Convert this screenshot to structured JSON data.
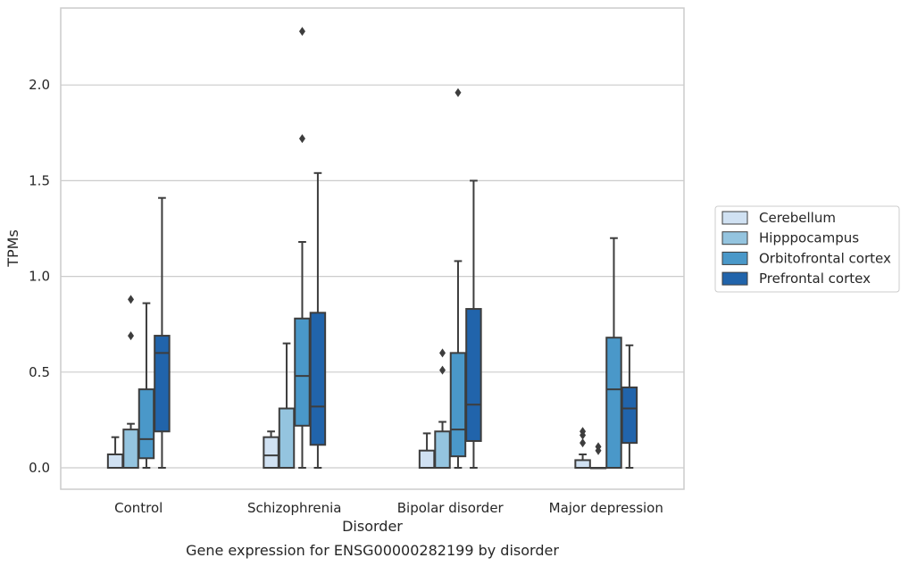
{
  "chart_data": {
    "type": "boxplot",
    "caption": "Gene expression for ENSG00000282199 by disorder",
    "xlabel": "Disorder",
    "ylabel": "TPMs",
    "ylim": [
      -0.11,
      2.4
    ],
    "yticks": [
      0.0,
      0.5,
      1.0,
      1.5,
      2.0
    ],
    "ytick_labels": [
      "0.0",
      "0.5",
      "1.0",
      "1.5",
      "2.0"
    ],
    "grid": true,
    "legend_position": "right",
    "categories": [
      "Control",
      "Schizophrenia",
      "Bipolar disorder",
      "Major depression"
    ],
    "series": [
      {
        "name": "Cerebellum",
        "color": "#d0e1f2",
        "boxes": [
          {
            "whisker_low": 0.0,
            "q1": 0.0,
            "median": 0.0,
            "q3": 0.07,
            "whisker_high": 0.16,
            "outliers": []
          },
          {
            "whisker_low": 0.0,
            "q1": 0.0,
            "median": 0.065,
            "q3": 0.16,
            "whisker_high": 0.19,
            "outliers": []
          },
          {
            "whisker_low": 0.0,
            "q1": 0.0,
            "median": 0.0,
            "q3": 0.09,
            "whisker_high": 0.18,
            "outliers": []
          },
          {
            "whisker_low": 0.0,
            "q1": 0.0,
            "median": 0.0,
            "q3": 0.04,
            "whisker_high": 0.07,
            "outliers": [
              0.13,
              0.17,
              0.19
            ]
          }
        ]
      },
      {
        "name": "Hipppocampus",
        "color": "#94c4df",
        "boxes": [
          {
            "whisker_low": 0.0,
            "q1": 0.0,
            "median": 0.0,
            "q3": 0.2,
            "whisker_high": 0.23,
            "outliers": [
              0.69,
              0.88
            ]
          },
          {
            "whisker_low": 0.0,
            "q1": 0.0,
            "median": 0.0,
            "q3": 0.31,
            "whisker_high": 0.65,
            "outliers": []
          },
          {
            "whisker_low": 0.0,
            "q1": 0.0,
            "median": 0.0,
            "q3": 0.19,
            "whisker_high": 0.24,
            "outliers": [
              0.51,
              0.6
            ]
          },
          {
            "whisker_low": 0.0,
            "q1": 0.0,
            "median": 0.0,
            "q3": 0.0,
            "whisker_high": 0.0,
            "outliers": [
              0.09,
              0.11
            ]
          }
        ]
      },
      {
        "name": "Orbitofrontal cortex",
        "color": "#4a98c9",
        "boxes": [
          {
            "whisker_low": 0.0,
            "q1": 0.05,
            "median": 0.15,
            "q3": 0.41,
            "whisker_high": 0.86,
            "outliers": []
          },
          {
            "whisker_low": 0.0,
            "q1": 0.22,
            "median": 0.48,
            "q3": 0.78,
            "whisker_high": 1.18,
            "outliers": [
              1.72,
              2.28
            ]
          },
          {
            "whisker_low": 0.0,
            "q1": 0.06,
            "median": 0.2,
            "q3": 0.6,
            "whisker_high": 1.08,
            "outliers": [
              1.96
            ]
          },
          {
            "whisker_low": 0.0,
            "q1": 0.0,
            "median": 0.41,
            "q3": 0.68,
            "whisker_high": 1.2,
            "outliers": []
          }
        ]
      },
      {
        "name": "Prefrontal cortex",
        "color": "#2164ab",
        "boxes": [
          {
            "whisker_low": 0.0,
            "q1": 0.19,
            "median": 0.6,
            "q3": 0.69,
            "whisker_high": 1.41,
            "outliers": []
          },
          {
            "whisker_low": 0.0,
            "q1": 0.12,
            "median": 0.32,
            "q3": 0.81,
            "whisker_high": 1.54,
            "outliers": []
          },
          {
            "whisker_low": 0.0,
            "q1": 0.14,
            "median": 0.33,
            "q3": 0.83,
            "whisker_high": 1.5,
            "outliers": []
          },
          {
            "whisker_low": 0.0,
            "q1": 0.13,
            "median": 0.31,
            "q3": 0.42,
            "whisker_high": 0.64,
            "outliers": []
          }
        ]
      }
    ]
  }
}
